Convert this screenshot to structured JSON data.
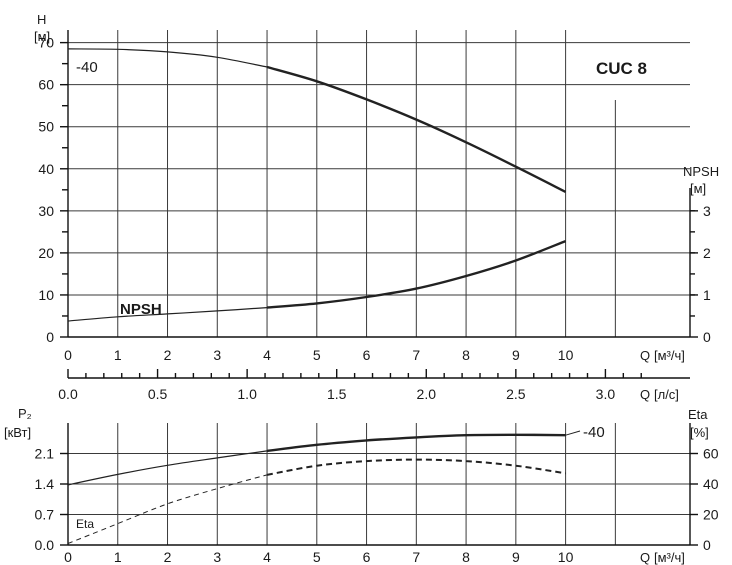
{
  "chart_data": [
    {
      "type": "line",
      "title": "CUC 8",
      "left_axis": {
        "label": "H",
        "unit": "[м]",
        "ticks": [
          0,
          10,
          20,
          30,
          40,
          50,
          60,
          70
        ],
        "range": [
          0,
          73
        ]
      },
      "right_axis": {
        "label": "NPSH",
        "unit": "[м]",
        "ticks": [
          0,
          1,
          2,
          3
        ],
        "range": [
          0,
          7.3
        ]
      },
      "x_axis": {
        "label": "Q",
        "unit": "[м³/ч]",
        "ticks": [
          0,
          1,
          2,
          3,
          4,
          5,
          6,
          7,
          8,
          9,
          10
        ],
        "range": [
          0,
          12.5
        ]
      },
      "x2_axis": {
        "label": "Q",
        "unit": "[л/с]",
        "ticks": [
          "0.0",
          "0.5",
          "1.0",
          "1.5",
          "2.0",
          "2.5",
          "3.0"
        ],
        "values": [
          0,
          0.5,
          1.0,
          1.5,
          2.0,
          2.5,
          3.0
        ]
      },
      "grid": true,
      "series": [
        {
          "name": "-40",
          "axis": "left",
          "x": [
            0,
            1,
            2,
            3,
            4,
            5,
            6,
            7,
            8,
            9,
            10
          ],
          "y": [
            68.5,
            68.4,
            67.8,
            66.5,
            64.2,
            60.8,
            56.5,
            51.7,
            46.3,
            40.5,
            34.5
          ]
        },
        {
          "name": "NPSH",
          "axis": "right",
          "x": [
            0,
            1,
            2,
            3,
            4,
            5,
            6,
            7,
            8,
            9,
            10
          ],
          "y": [
            0.38,
            0.48,
            0.55,
            0.62,
            0.7,
            0.8,
            0.95,
            1.15,
            1.45,
            1.82,
            2.28
          ]
        }
      ]
    },
    {
      "type": "line",
      "left_axis": {
        "label": "P₂",
        "unit": "[кВт]",
        "ticks": [
          "0.0",
          "0.7",
          "1.4",
          "2.1"
        ],
        "values": [
          0,
          0.7,
          1.4,
          2.1
        ],
        "range": [
          0,
          2.8
        ]
      },
      "right_axis": {
        "label": "Eta",
        "unit": "[%]",
        "ticks": [
          0,
          20,
          40,
          60
        ],
        "range": [
          0,
          80
        ]
      },
      "x_axis": {
        "label": "Q",
        "unit": "[м³/ч]",
        "ticks": [
          0,
          1,
          2,
          3,
          4,
          5,
          6,
          7,
          8,
          9,
          10
        ],
        "range": [
          0,
          12.5
        ]
      },
      "grid": true,
      "series": [
        {
          "name": "-40",
          "axis": "left",
          "x": [
            0,
            1,
            2,
            3,
            4,
            5,
            6,
            7,
            8,
            9,
            10
          ],
          "y": [
            1.38,
            1.62,
            1.83,
            2.0,
            2.16,
            2.3,
            2.4,
            2.47,
            2.52,
            2.53,
            2.52
          ]
        },
        {
          "name": "Eta",
          "axis": "right",
          "dashed": true,
          "x": [
            0,
            1,
            2,
            3,
            4,
            5,
            6,
            7,
            8,
            9,
            10
          ],
          "y": [
            1,
            14,
            27,
            37,
            46,
            52,
            55,
            56,
            55,
            52,
            47
          ]
        }
      ]
    }
  ]
}
